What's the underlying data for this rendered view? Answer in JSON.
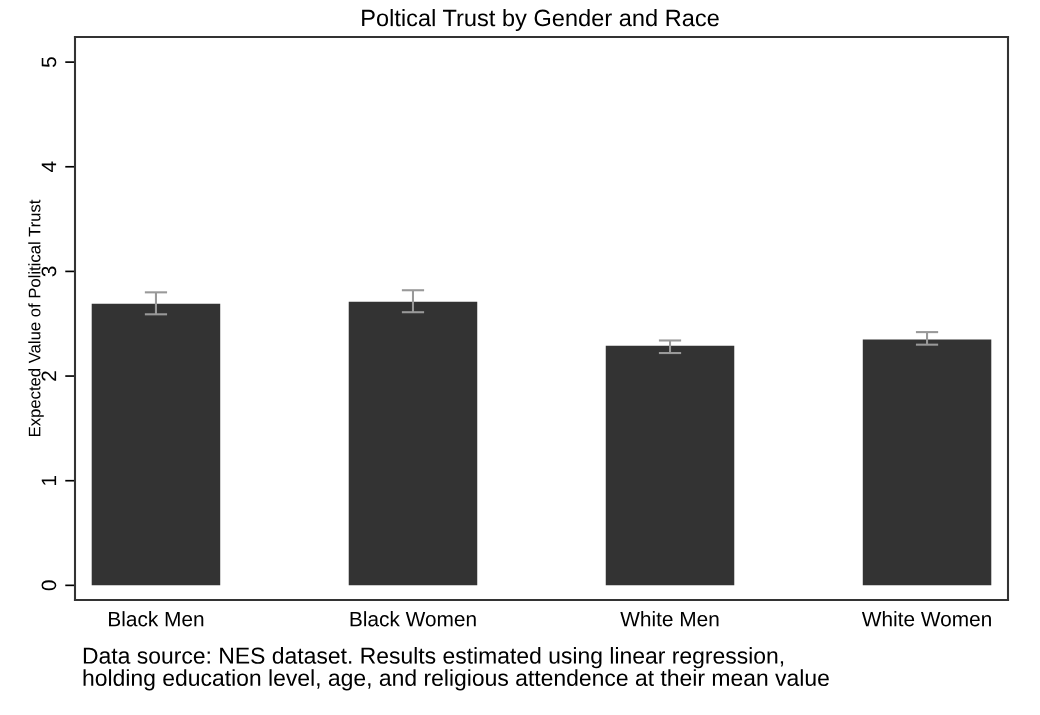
{
  "chart_data": {
    "type": "bar",
    "title": "Poltical Trust by Gender and Race",
    "ylabel": "Expected Value of Political Trust",
    "categories": [
      "Black Men",
      "Black Women",
      "White Men",
      "White Women"
    ],
    "values": [
      2.69,
      2.71,
      2.29,
      2.35
    ],
    "errors": [
      [
        2.59,
        2.8
      ],
      [
        2.61,
        2.82
      ],
      [
        2.22,
        2.34
      ],
      [
        2.3,
        2.42
      ]
    ],
    "color": "#333333",
    "ylim": [
      -0.14,
      5.24
    ],
    "yticks": [
      0,
      1,
      2,
      3,
      4,
      5
    ],
    "grid": false,
    "annotations": [
      "Data source: NES dataset. Results estimated using linear regression,\nholding education level, age, and religious attendence at their mean value"
    ]
  }
}
